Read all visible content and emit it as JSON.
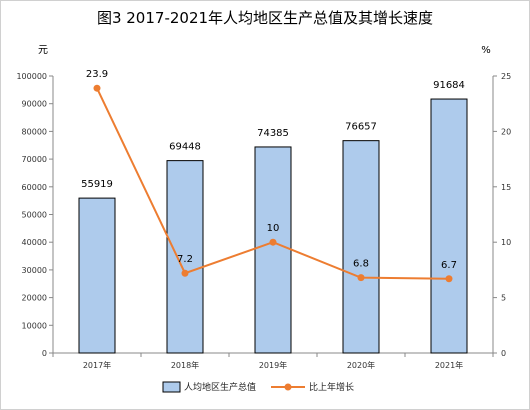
{
  "chart_data": {
    "title": "图3  2017-2021年人均地区生产总值及其增长速度",
    "type": "bar+line",
    "categories": [
      "2017年",
      "2018年",
      "2019年",
      "2020年",
      "2021年"
    ],
    "series": [
      {
        "name": "人均地区生产总值",
        "type": "bar",
        "axis": "left",
        "values": [
          55919,
          69448,
          74385,
          76657,
          91684
        ],
        "labels": [
          "55919",
          "69448",
          "74385",
          "76657",
          "91684"
        ],
        "color": "#aecbec",
        "edge_color": "#000000"
      },
      {
        "name": "比上年增长",
        "type": "line",
        "axis": "right",
        "values": [
          23.9,
          7.2,
          10,
          6.8,
          6.7
        ],
        "labels": [
          "23.9",
          "7.2",
          "10",
          "6.8",
          "6.7"
        ],
        "color": "#ed7d31"
      }
    ],
    "y_left": {
      "unit": "元",
      "range": [
        0,
        100000
      ],
      "ticks": [
        "0",
        "10000",
        "20000",
        "30000",
        "40000",
        "50000",
        "60000",
        "70000",
        "80000",
        "90000",
        "100000"
      ]
    },
    "y_right": {
      "unit": "%",
      "range": [
        0,
        25
      ],
      "ticks": [
        "0",
        "5",
        "10",
        "15",
        "20",
        "25"
      ]
    },
    "grid": false,
    "legend": "bottom"
  }
}
